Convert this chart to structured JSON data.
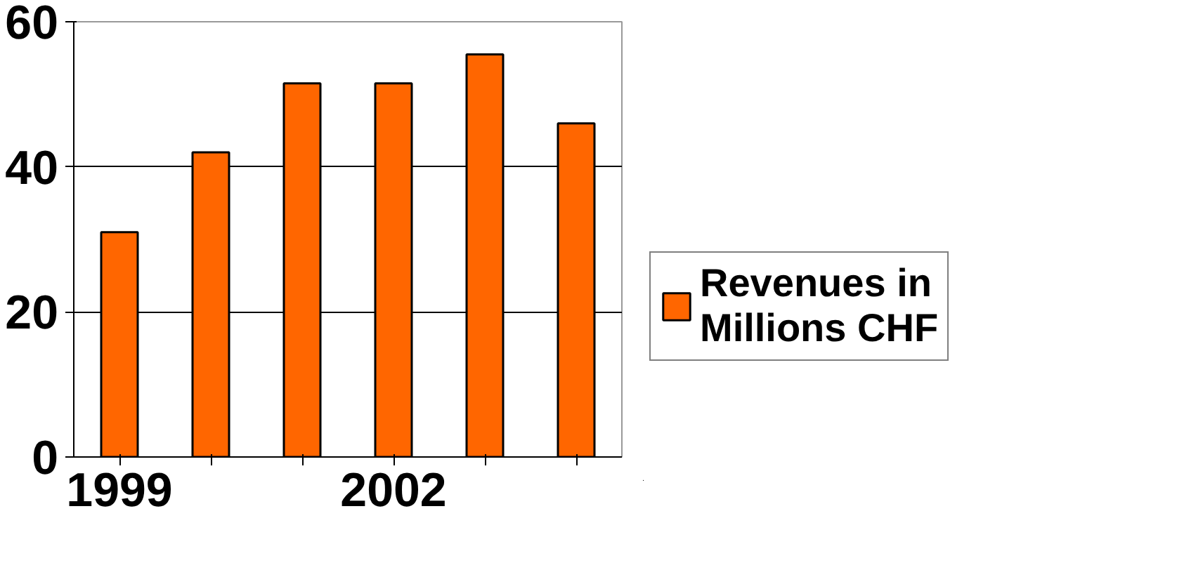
{
  "chart_data": {
    "type": "bar",
    "categories": [
      "1999",
      null,
      null,
      "2002",
      null,
      null
    ],
    "series": [
      {
        "name": "Revenues in Millions CHF",
        "color": "#ff6600",
        "values": [
          31,
          42,
          51.5,
          51.5,
          55.5,
          46
        ]
      }
    ],
    "ylim": [
      0,
      60
    ],
    "yticks": [
      0,
      20,
      40,
      60
    ],
    "grid": "y",
    "legend": "right"
  }
}
